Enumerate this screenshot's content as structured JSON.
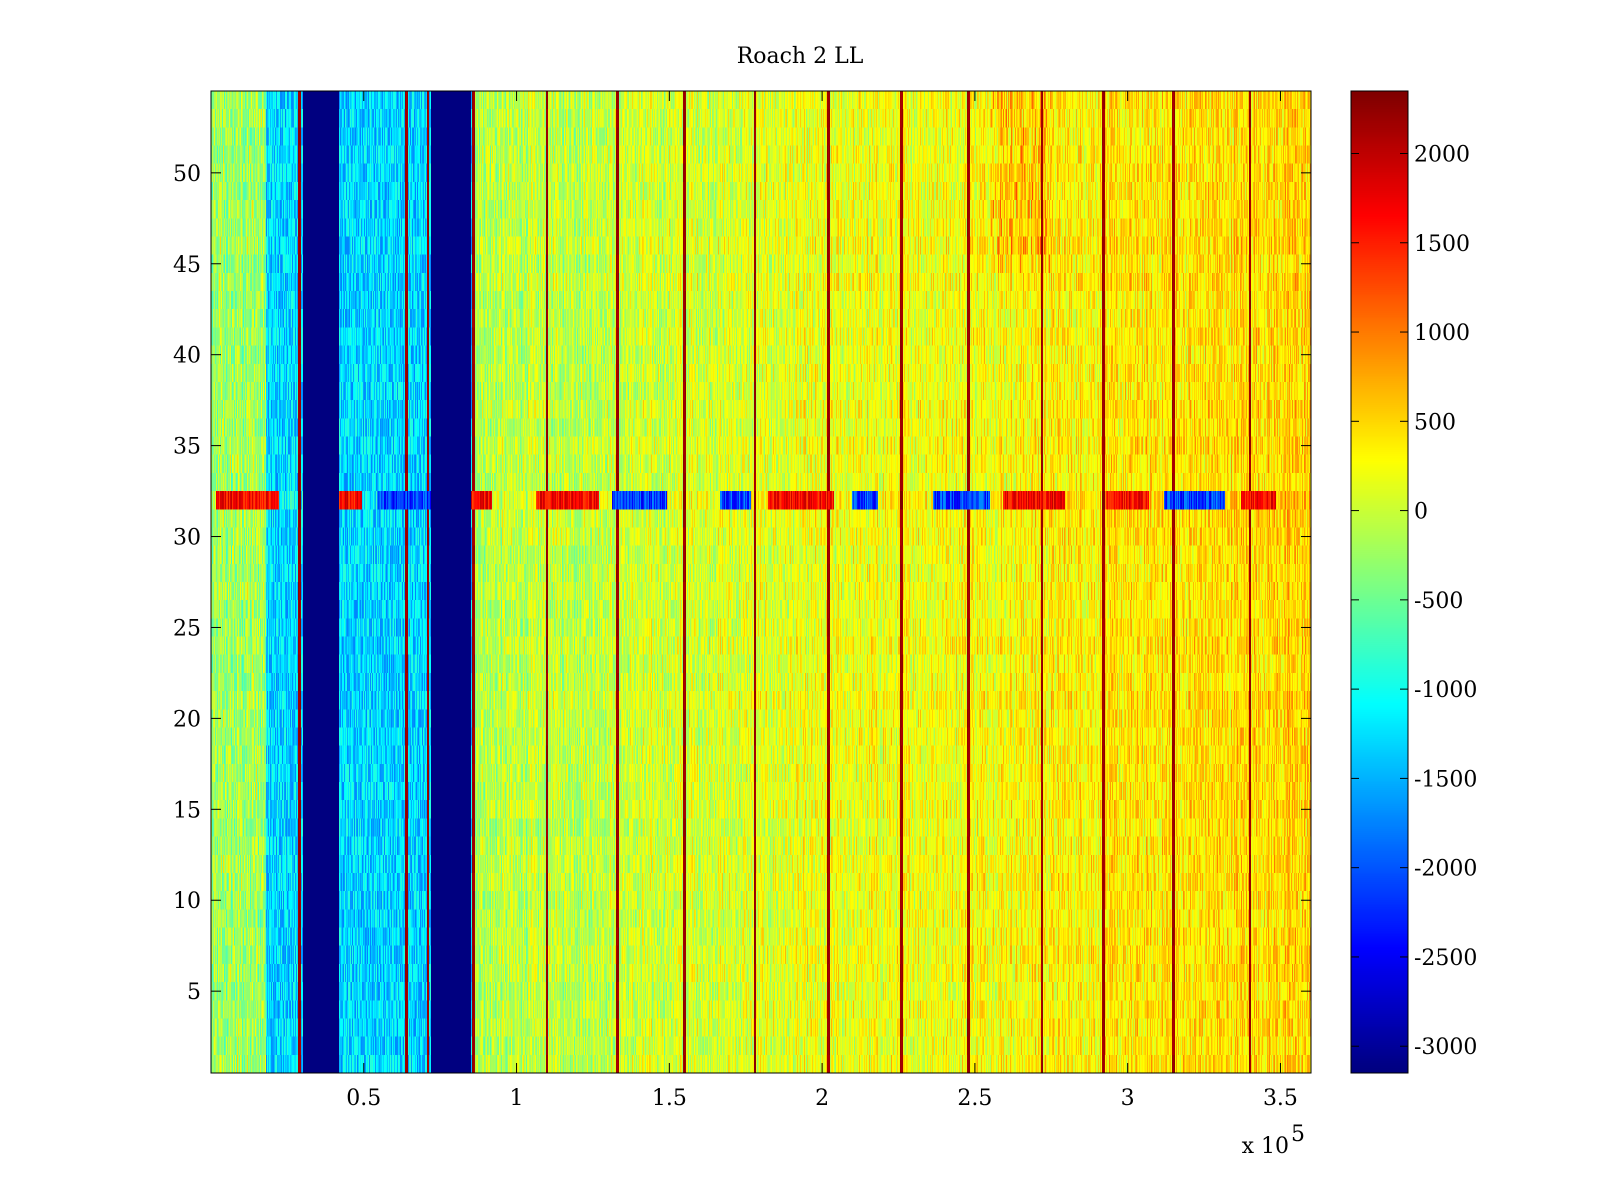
{
  "chart_data": {
    "type": "heatmap",
    "title": "Roach 2 LL",
    "xlabel": "",
    "ylabel": "",
    "x_exponent_label": {
      "base": "x 10",
      "exponent": "5"
    },
    "xlim": [
      0,
      3.6
    ],
    "ylim": [
      0.5,
      54.5
    ],
    "x_ticks": [
      0.5,
      1,
      1.5,
      2,
      2.5,
      3,
      3.5
    ],
    "x_tick_labels": [
      "0.5",
      "1",
      "1.5",
      "2",
      "2.5",
      "3",
      "3.5"
    ],
    "y_ticks": [
      5,
      10,
      15,
      20,
      25,
      30,
      35,
      40,
      45,
      50
    ],
    "y_tick_labels": [
      "5",
      "10",
      "15",
      "20",
      "25",
      "30",
      "35",
      "40",
      "45",
      "50"
    ],
    "colorbar": {
      "clim": [
        -3150,
        2350
      ],
      "colormap": "jet",
      "ticks": [
        2000,
        1500,
        1000,
        500,
        0,
        -500,
        -1000,
        -1500,
        -2000,
        -2500,
        -3000
      ],
      "tick_labels": [
        "2000",
        "1500",
        "1000",
        "500",
        "0",
        "-500",
        "-1000",
        "-1500",
        "-2000",
        "-2500",
        "-3000"
      ]
    },
    "rows": 54,
    "features": {
      "saturated_low_bands_x": [
        [
          0.3,
          0.42
        ],
        [
          0.72,
          0.85
        ]
      ],
      "low_region_x": [
        0.18,
        0.86
      ],
      "bright_vertical_lines_x": [
        0.29,
        0.64,
        0.71,
        0.86,
        1.1,
        1.33,
        1.55,
        1.78,
        2.02,
        2.26,
        2.48,
        2.72,
        2.92,
        3.15,
        3.4
      ],
      "anomalous_row": 32,
      "hot_region_x": [
        2.55,
        2.75
      ],
      "hot_region_y": [
        45,
        54
      ]
    }
  }
}
